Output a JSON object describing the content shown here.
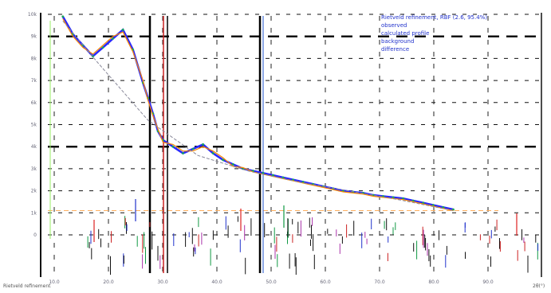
{
  "chart_data": {
    "type": "line",
    "title": "",
    "xlabel": "",
    "ylabel": "",
    "xlim": [
      0,
      9
    ],
    "ylim": [
      0,
      10
    ],
    "x_ticks": [
      "10.0",
      "20.0",
      "30.0",
      "40.0",
      "50.0",
      "60.0",
      "70.0",
      "80.0",
      "90.0"
    ],
    "y_ticks": [
      "10k",
      "9k",
      "8k",
      "7k",
      "6k",
      "5k",
      "4k",
      "3k",
      "2k",
      "1k",
      "0"
    ],
    "grid": true,
    "legend_position": "top-right",
    "legend": [
      "Rietveld refinement, RBF (2.6, 95.4%)",
      "observed",
      "calculated profile",
      "background",
      "difference"
    ],
    "corner_left": "Rietveld refinement",
    "corner_right": "2θ(°)",
    "series": [
      {
        "color": "#2a2aff",
        "x": [
          0.3,
          0.5,
          0.7,
          0.9,
          1.1,
          1.3,
          1.5,
          1.7,
          1.9,
          2.0,
          2.1,
          2.2,
          2.3,
          2.5,
          2.7,
          2.9,
          3.1,
          3.3,
          3.5,
          3.7,
          3.9,
          4.1,
          4.3,
          4.5,
          4.7,
          4.9,
          5.1,
          5.3,
          5.5,
          5.7,
          5.9,
          6.1,
          6.3,
          6.5,
          6.7,
          6.9,
          7.1,
          7.3,
          7.5,
          7.7,
          7.9,
          8.1
        ],
        "values": [
          9.9,
          9.1,
          8.6,
          8.1,
          8.5,
          8.9,
          9.3,
          8.4,
          6.9,
          6.2,
          5.5,
          4.7,
          4.3,
          4.0,
          3.7,
          3.9,
          4.1,
          3.7,
          3.4,
          3.2,
          3.0,
          2.9,
          2.8,
          2.7,
          2.6,
          2.5,
          2.4,
          2.3,
          2.2,
          2.1,
          2.0,
          1.95,
          1.9,
          1.8,
          1.75,
          1.7,
          1.65,
          1.55,
          1.45,
          1.35,
          1.25,
          1.15
        ]
      },
      {
        "color": "#ff8800",
        "x": [
          0.3,
          0.5,
          0.7,
          0.9,
          1.1,
          1.3,
          1.5,
          1.7,
          1.9,
          2.0,
          2.1,
          2.2,
          2.3,
          2.5,
          2.7,
          2.9,
          3.1,
          3.3,
          3.5,
          3.7,
          3.9,
          4.1,
          4.3,
          4.5,
          4.7,
          4.9,
          5.1,
          5.3,
          5.5,
          5.7,
          5.9,
          6.1,
          6.3,
          6.5,
          6.7,
          6.9,
          7.1,
          7.3,
          7.5,
          7.7,
          7.9,
          8.1
        ],
        "values": [
          9.8,
          9.0,
          8.5,
          8.2,
          8.6,
          9.0,
          9.2,
          8.3,
          7.0,
          6.1,
          5.4,
          4.8,
          4.2,
          4.1,
          3.8,
          3.8,
          4.0,
          3.8,
          3.5,
          3.1,
          3.05,
          2.85,
          2.75,
          2.65,
          2.55,
          2.45,
          2.35,
          2.25,
          2.15,
          2.05,
          1.95,
          1.9,
          1.85,
          1.75,
          1.7,
          1.65,
          1.6,
          1.5,
          1.4,
          1.3,
          1.2,
          1.1
        ]
      },
      {
        "color": "#888899",
        "x": [
          0.3,
          1.0,
          2.0,
          3.0,
          4.0,
          5.0,
          6.0,
          7.0,
          8.1
        ],
        "values": [
          9.7,
          7.8,
          5.2,
          3.6,
          2.9,
          2.4,
          2.0,
          1.6,
          1.1
        ]
      }
    ]
  }
}
